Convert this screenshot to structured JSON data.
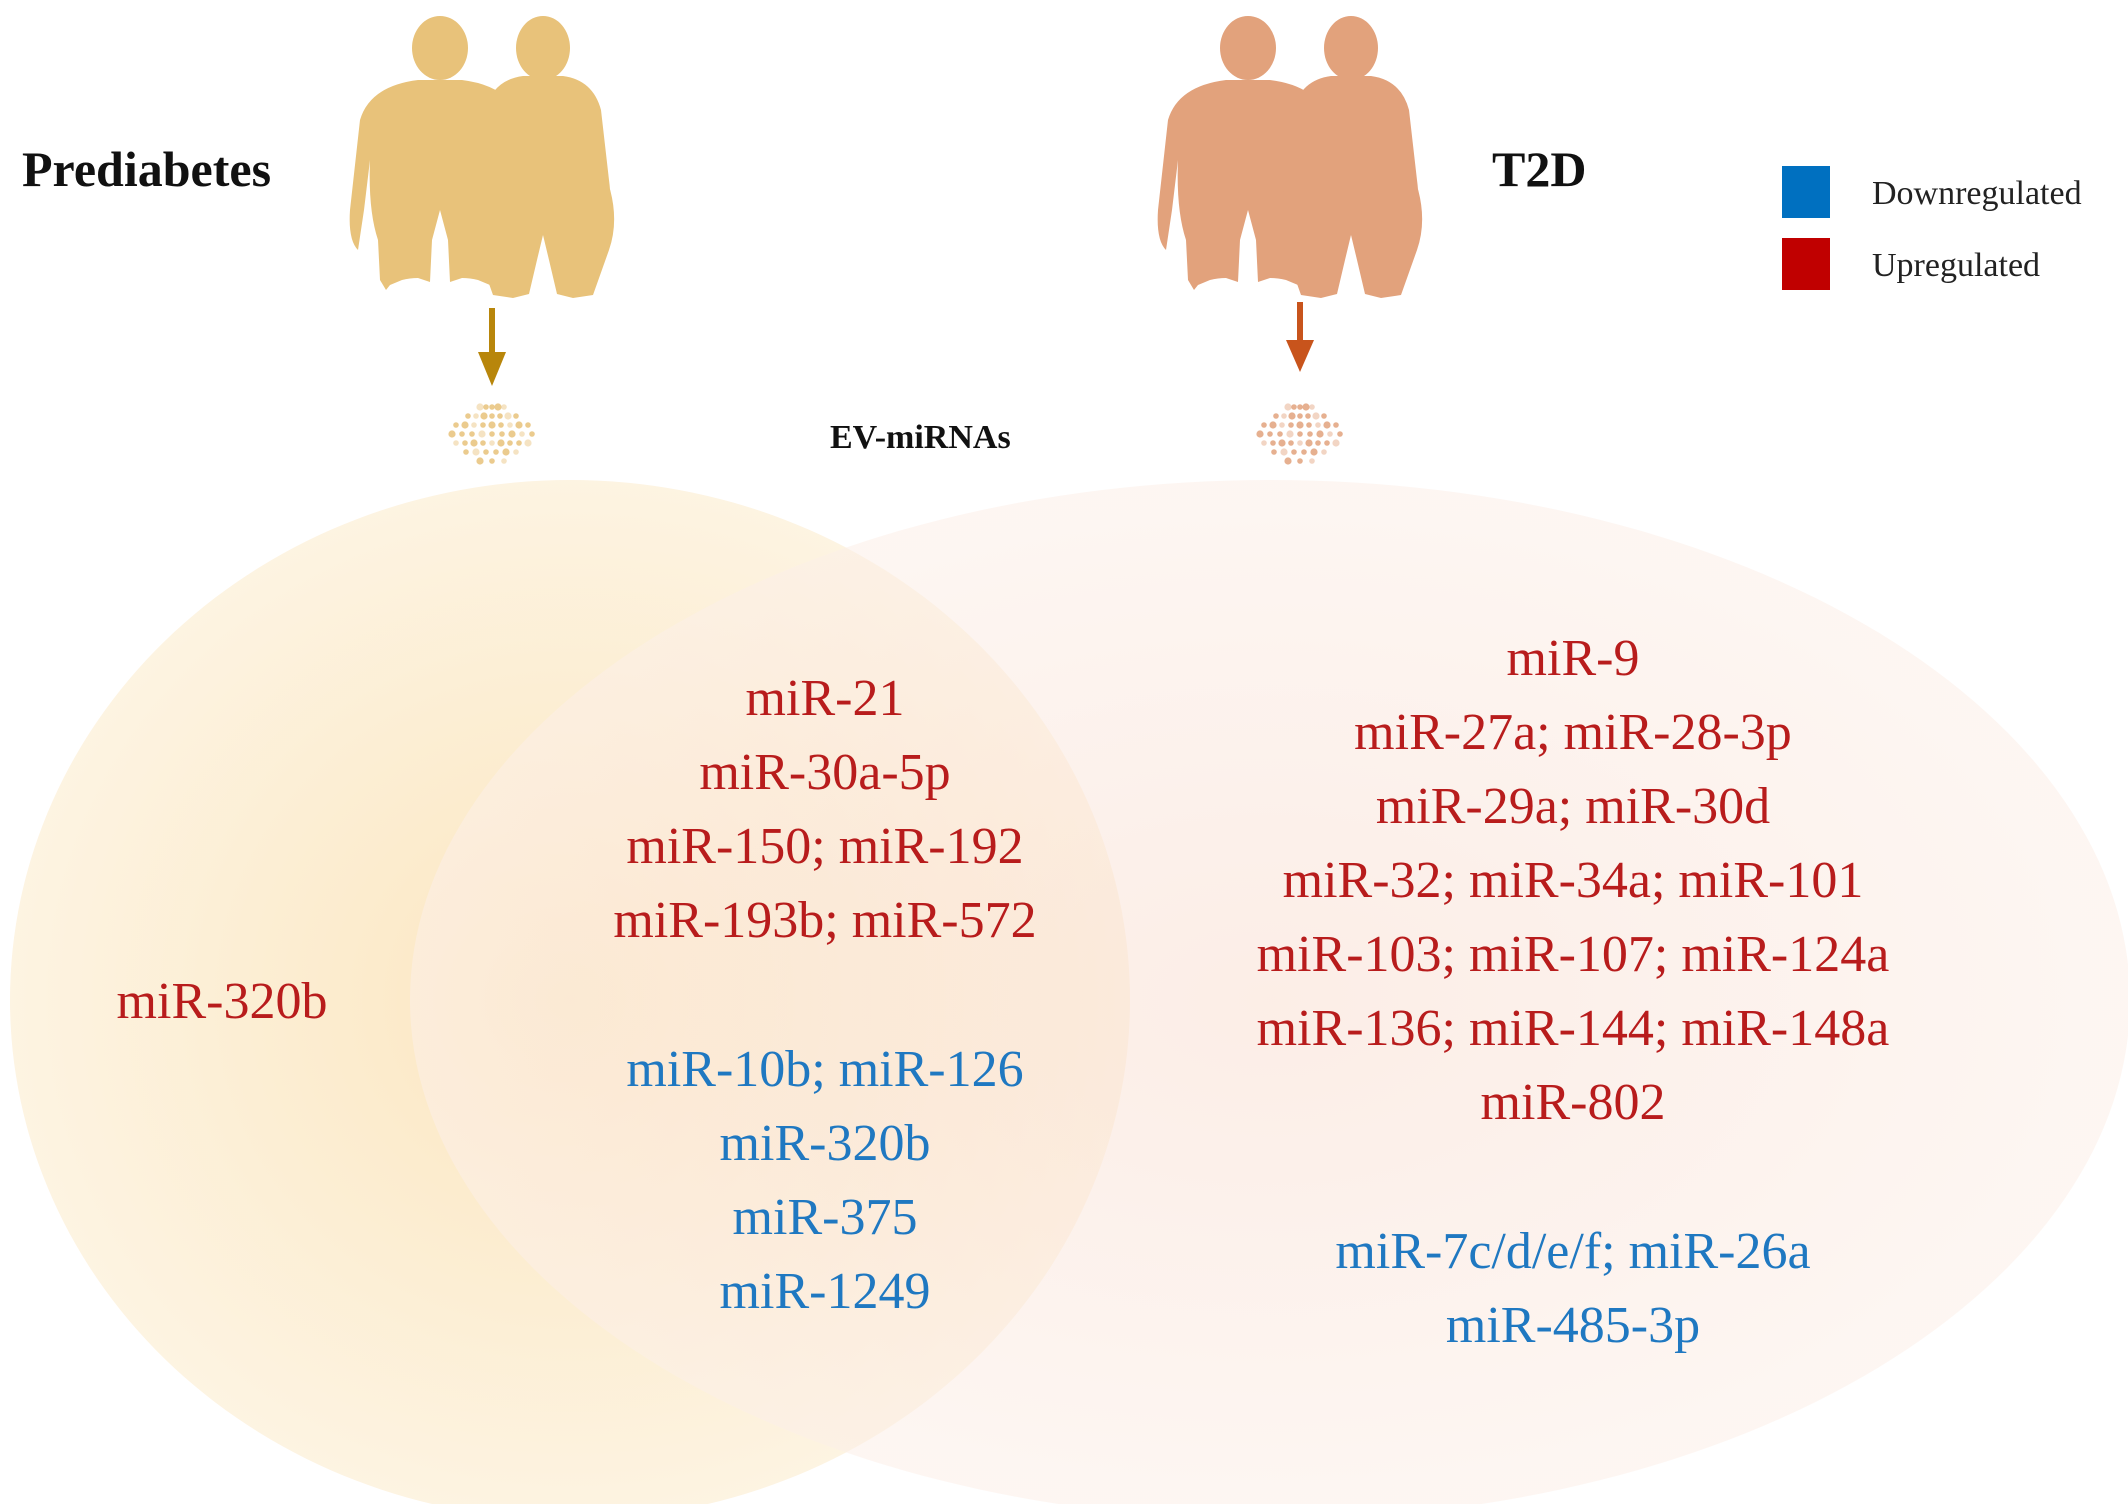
{
  "groups": {
    "left": {
      "label": "Prediabetes"
    },
    "right": {
      "label": "T2D"
    }
  },
  "center_label": "EV-miRNAs",
  "legend": {
    "items": [
      {
        "label": "Downregulated",
        "color": "#0070c0"
      },
      {
        "label": "Upregulated",
        "color": "#c00000"
      }
    ]
  },
  "colors": {
    "up": "#b81c1c",
    "down": "#1f78c1",
    "left_figure": "#e8c27a",
    "right_figure": "#e2a27c",
    "left_arrow": "#b8860b",
    "right_arrow": "#c8541c",
    "left_circle": "#fcefd6",
    "right_circle": "#fbe6dc"
  },
  "regions": {
    "prediabetes_only": {
      "up": [
        "miR-320b"
      ],
      "down": []
    },
    "shared": {
      "up": [
        "miR-21",
        "miR-30a-5p",
        "miR-150; miR-192",
        "miR-193b; miR-572"
      ],
      "down": [
        "miR-10b; miR-126",
        "miR-320b",
        "miR-375",
        "miR-1249"
      ]
    },
    "t2d_only": {
      "up": [
        "miR-9",
        "miR-27a; miR-28-3p",
        "miR-29a; miR-30d",
        "miR-32; miR-34a; miR-101",
        "miR-103; miR-107; miR-124a",
        "miR-136; miR-144; miR-148a",
        "miR-802"
      ],
      "down": [
        "miR-7c/d/e/f; miR-26a",
        "miR-485-3p"
      ]
    }
  }
}
